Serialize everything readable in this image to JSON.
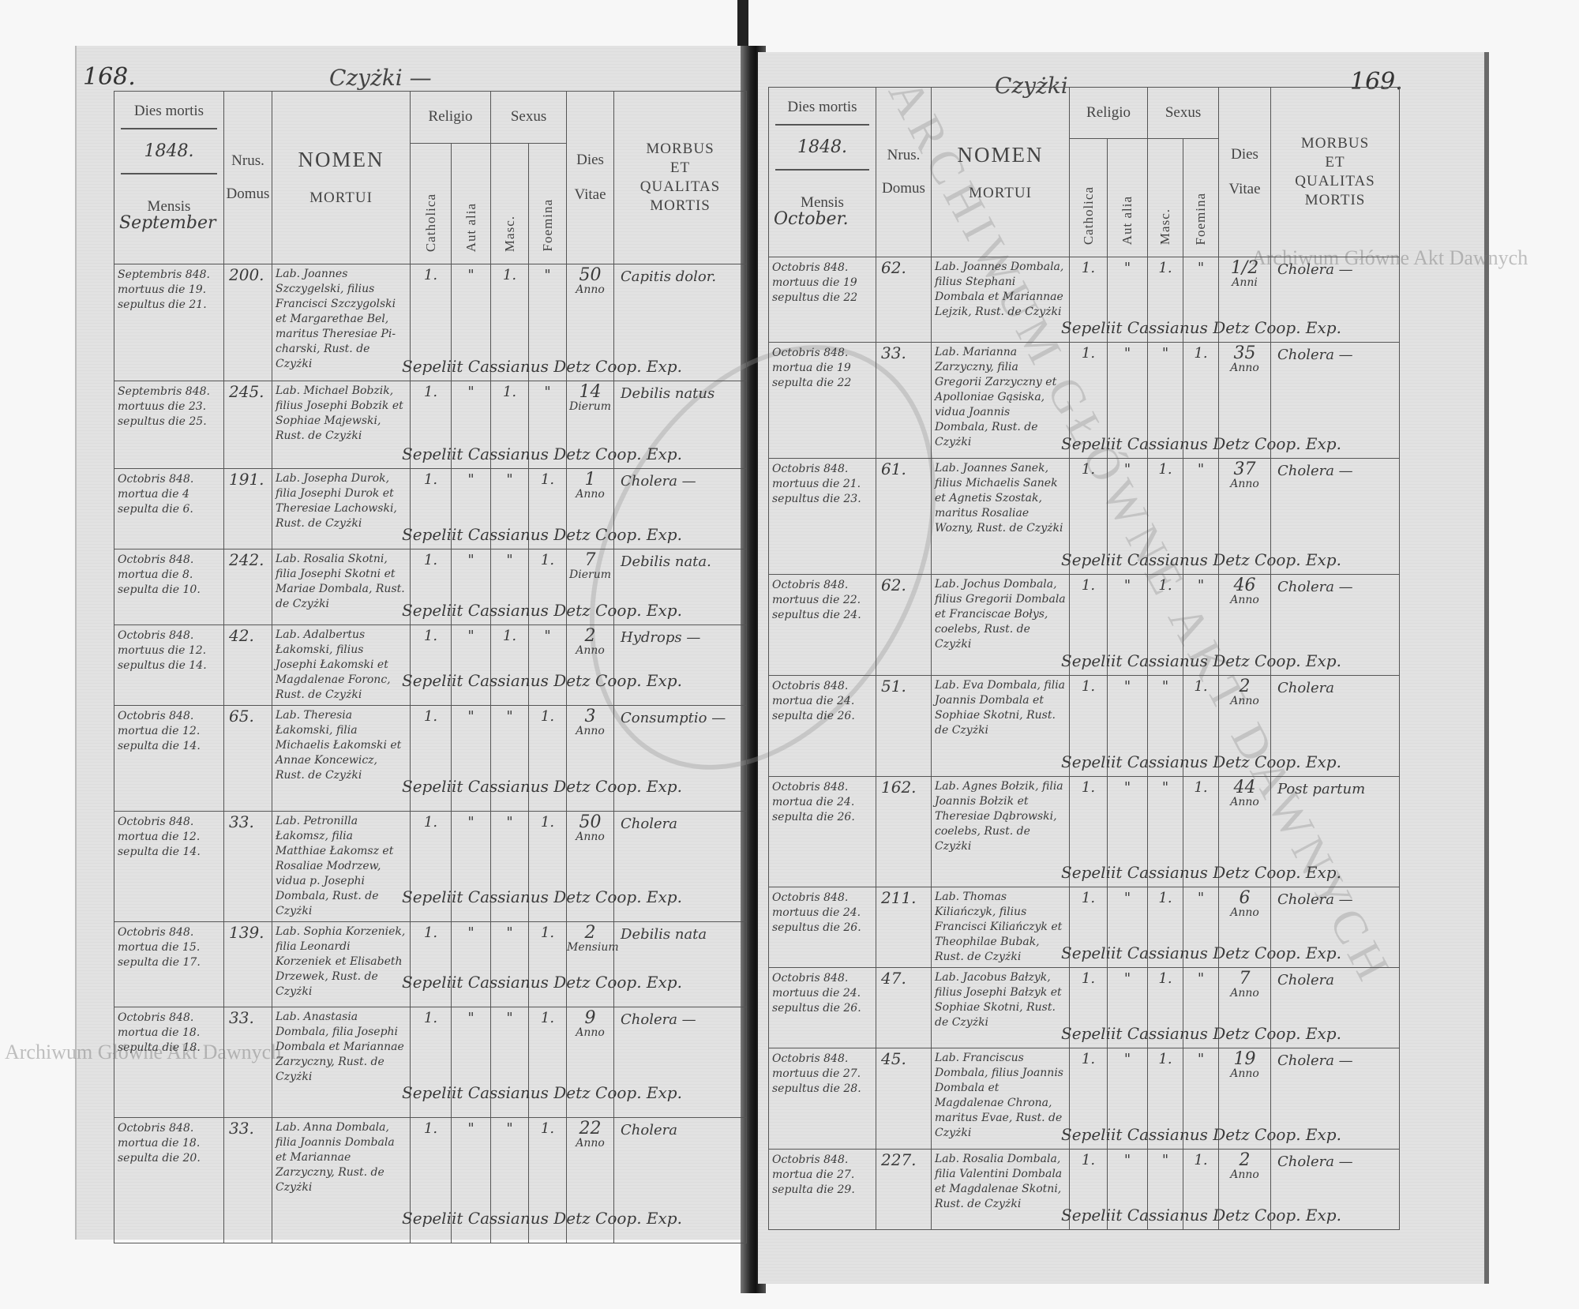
{
  "header": {
    "dies_mortis": "Dies mortis",
    "year": "1848.",
    "mensis": "Mensis",
    "nrus": "Nrus.",
    "domus": "Domus",
    "nomen": "NOMEN",
    "mortui": "MORTUI",
    "religio": "Religio",
    "catholica": "Catholica",
    "aut_alia": "Aut alia",
    "sexus": "Sexus",
    "masc": "Masc.",
    "foemina": "Foemina",
    "dies": "Dies",
    "vitae": "Vitae",
    "morbus": "MORBUS",
    "et": "ET",
    "qualitas": "QUALITAS",
    "mortis": "MORTIS"
  },
  "burial_note": "Sepeliit Cassianus Detz Coop. Exp.",
  "watermark": "Archiwum Główne Akt Dawnych",
  "stamp_text": "ARCHIWUM GŁÓWNE AKT DAWNYCH",
  "left_page": {
    "page_number": "168.",
    "village": "Czyżki —",
    "month": "September",
    "entries": [
      {
        "date": [
          "Septembris 848.",
          "mortuus die 19.",
          "sepultus die 21."
        ],
        "domus": "200.",
        "nomen": "Lab. Joannes Szczygelski, filius Francisci Szczygolski et Margarethae Bel, maritus Theresiae Pi-charski, Rust. de Czyżki",
        "cath": "1.",
        "alia": "\"",
        "masc": "1.",
        "foem": "\"",
        "vitae": "50",
        "unit": "Anno",
        "morbus": "Capitis dolor."
      },
      {
        "date": [
          "Septembris 848.",
          "mortuus die 23.",
          "sepultus die 25."
        ],
        "domus": "245.",
        "nomen": "Lab. Michael Bobzik, filius Josephi Bobzik et Sophiae Majewski, Rust. de Czyżki",
        "cath": "1.",
        "alia": "\"",
        "masc": "1.",
        "foem": "\"",
        "vitae": "14",
        "unit": "Dierum",
        "morbus": "Debilis natus"
      },
      {
        "date": [
          "Octobris 848.",
          "mortua die 4",
          "sepulta die 6."
        ],
        "domus": "191.",
        "nomen": "Lab. Josepha Durok, filia Josephi Durok et Theresiae Lachowski, Rust. de Czyżki",
        "cath": "1.",
        "alia": "\"",
        "masc": "\"",
        "foem": "1.",
        "vitae": "1",
        "unit": "Anno",
        "morbus": "Cholera —"
      },
      {
        "date": [
          "Octobris 848.",
          "mortua die 8.",
          "sepulta die 10."
        ],
        "domus": "242.",
        "nomen": "Lab. Rosalia Skotni, filia Josephi Skotni et Mariae Dombala, Rust. de Czyżki",
        "cath": "1.",
        "alia": "\"",
        "masc": "\"",
        "foem": "1.",
        "vitae": "7",
        "unit": "Dierum",
        "morbus": "Debilis nata."
      },
      {
        "date": [
          "Octobris 848.",
          "mortuus die 12.",
          "sepultus die 14."
        ],
        "domus": "42.",
        "nomen": "Lab. Adalbertus Łakomski, filius Josephi Łakomski et Magdalenae Foronc, Rust. de Czyżki",
        "cath": "1.",
        "alia": "\"",
        "masc": "1.",
        "foem": "\"",
        "vitae": "2",
        "unit": "Anno",
        "morbus": "Hydrops —"
      },
      {
        "date": [
          "Octobris 848.",
          "mortua die 12.",
          "sepulta die 14."
        ],
        "domus": "65.",
        "nomen": "Lab. Theresia Łakomski, filia Michaelis Łakomski et Annae Koncewicz, Rust. de Czyżki",
        "cath": "1.",
        "alia": "\"",
        "masc": "\"",
        "foem": "1.",
        "vitae": "3",
        "unit": "Anno",
        "morbus": "Consumptio —"
      },
      {
        "date": [
          "Octobris 848.",
          "mortua die 12.",
          "sepulta die 14."
        ],
        "domus": "33.",
        "nomen": "Lab. Petronilla Łakomsz, filia Matthiae Łakomsz et Rosaliae Modrzew, vidua p. Josephi Dombala, Rust. de Czyżki",
        "cath": "1.",
        "alia": "\"",
        "masc": "\"",
        "foem": "1.",
        "vitae": "50",
        "unit": "Anno",
        "morbus": "Cholera"
      },
      {
        "date": [
          "Octobris 848.",
          "mortua die 15.",
          "sepulta die 17."
        ],
        "domus": "139.",
        "nomen": "Lab. Sophia Korzeniek, filia Leonardi Korzeniek et Elisabeth Drzewek, Rust. de Czyżki",
        "cath": "1.",
        "alia": "\"",
        "masc": "\"",
        "foem": "1.",
        "vitae": "2",
        "unit": "Mensium",
        "morbus": "Debilis nata"
      },
      {
        "date": [
          "Octobris 848.",
          "mortua die 18.",
          "sepulta die 18."
        ],
        "domus": "33.",
        "nomen": "Lab. Anastasia Dombala, filia Josephi Dombala et Mariannae Zarzyczny, Rust. de Czyżki",
        "cath": "1.",
        "alia": "\"",
        "masc": "\"",
        "foem": "1.",
        "vitae": "9",
        "unit": "Anno",
        "morbus": "Cholera —"
      },
      {
        "date": [
          "Octobris 848.",
          "mortua die 18.",
          "sepulta die 20."
        ],
        "domus": "33.",
        "nomen": "Lab. Anna Dombala, filia Joannis Dombala et Mariannae Zarzyczny, Rust. de Czyżki",
        "cath": "1.",
        "alia": "\"",
        "masc": "\"",
        "foem": "1.",
        "vitae": "22",
        "unit": "Anno",
        "morbus": "Cholera"
      }
    ]
  },
  "right_page": {
    "page_number": "169.",
    "village": "Czyżki",
    "month": "October.",
    "entries": [
      {
        "date": [
          "Octobris 848.",
          "mortuus die 19",
          "sepultus die 22"
        ],
        "domus": "62.",
        "nomen": "Lab. Joannes Dombala, filius Stephani Dombala et Mariannae Lejzik, Rust. de Czyżki",
        "cath": "1.",
        "alia": "\"",
        "masc": "1.",
        "foem": "\"",
        "vitae": "1/2",
        "unit": "Anni",
        "morbus": "Cholera —"
      },
      {
        "date": [
          "Octobris 848.",
          "mortua die 19",
          "sepulta die 22"
        ],
        "domus": "33.",
        "nomen": "Lab. Marianna Zarzyczny, filia Gregorii Zarzyczny et Apolloniae Gąsiska, vidua Joannis Dombala, Rust. de Czyżki",
        "cath": "1.",
        "alia": "\"",
        "masc": "\"",
        "foem": "1.",
        "vitae": "35",
        "unit": "Anno",
        "morbus": "Cholera —"
      },
      {
        "date": [
          "Octobris 848.",
          "mortuus die 21.",
          "sepultus die 23."
        ],
        "domus": "61.",
        "nomen": "Lab. Joannes Sanek, filius Michaelis Sanek et Agnetis Szostak, maritus Rosaliae Wozny, Rust. de Czyżki",
        "cath": "1.",
        "alia": "\"",
        "masc": "1.",
        "foem": "\"",
        "vitae": "37",
        "unit": "Anno",
        "morbus": "Cholera —"
      },
      {
        "date": [
          "Octobris 848.",
          "mortuus die 22.",
          "sepultus die 24."
        ],
        "domus": "62.",
        "nomen": "Lab. Jochus Dombala, filius Gregorii Dombala et Franciscae Bołys, coelebs, Rust. de Czyżki",
        "cath": "1.",
        "alia": "\"",
        "masc": "1.",
        "foem": "\"",
        "vitae": "46",
        "unit": "Anno",
        "morbus": "Cholera —"
      },
      {
        "date": [
          "Octobris 848.",
          "mortua die 24.",
          "sepulta die 26."
        ],
        "domus": "51.",
        "nomen": "Lab. Eva Dombala, filia Joannis Dombala et Sophiae Skotni, Rust. de Czyżki",
        "cath": "1.",
        "alia": "\"",
        "masc": "\"",
        "foem": "1.",
        "vitae": "2",
        "unit": "Anno",
        "morbus": "Cholera"
      },
      {
        "date": [
          "Octobris 848.",
          "mortua die 24.",
          "sepulta die 26."
        ],
        "domus": "162.",
        "nomen": "Lab. Agnes Bołzik, filia Joannis Bołzik et Theresiae Dąbrowski, coelebs, Rust. de Czyżki",
        "cath": "1.",
        "alia": "\"",
        "masc": "\"",
        "foem": "1.",
        "vitae": "44",
        "unit": "Anno",
        "morbus": "Post partum"
      },
      {
        "date": [
          "Octobris 848.",
          "mortuus die 24.",
          "sepultus die 26."
        ],
        "domus": "211.",
        "nomen": "Lab. Thomas Kiliańczyk, filius Francisci Kiliańczyk et Theophilae Bubak, Rust. de Czyżki",
        "cath": "1.",
        "alia": "\"",
        "masc": "1.",
        "foem": "\"",
        "vitae": "6",
        "unit": "Anno",
        "morbus": "Cholera —"
      },
      {
        "date": [
          "Octobris 848.",
          "mortuus die 24.",
          "sepultus die 26."
        ],
        "domus": "47.",
        "nomen": "Lab. Jacobus Bałzyk, filius Josephi Bałzyk et Sophiae Skotni, Rust. de Czyżki",
        "cath": "1.",
        "alia": "\"",
        "masc": "1.",
        "foem": "\"",
        "vitae": "7",
        "unit": "Anno",
        "morbus": "Cholera"
      },
      {
        "date": [
          "Octobris 848.",
          "mortuus die 27.",
          "sepultus die 28."
        ],
        "domus": "45.",
        "nomen": "Lab. Franciscus Dombala, filius Joannis Dombala et Magdalenae Chrona, maritus Evae, Rust. de Czyżki",
        "cath": "1.",
        "alia": "\"",
        "masc": "1.",
        "foem": "\"",
        "vitae": "19",
        "unit": "Anno",
        "morbus": "Cholera —"
      },
      {
        "date": [
          "Octobris 848.",
          "mortua die 27.",
          "sepulta die 29."
        ],
        "domus": "227.",
        "nomen": "Lab. Rosalia Dombala, filia Valentini Dombala et Magdalenae Skotni, Rust. de Czyżki",
        "cath": "1.",
        "alia": "\"",
        "masc": "\"",
        "foem": "1.",
        "vitae": "2",
        "unit": "Anno",
        "morbus": "Cholera —"
      }
    ]
  }
}
